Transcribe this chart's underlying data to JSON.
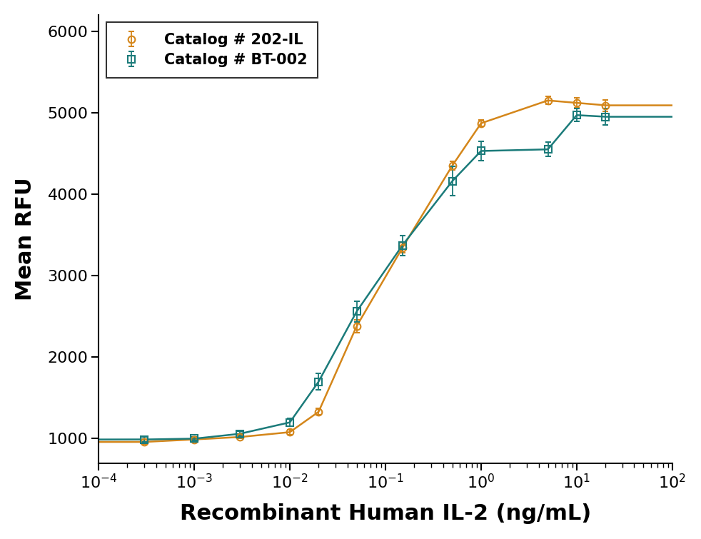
{
  "series": [
    {
      "label": "Catalog # 202-IL",
      "color": "#D4861A",
      "marker": "o",
      "marker_facecolor": "none",
      "markersize": 7,
      "x": [
        0.0003,
        0.001,
        0.003,
        0.01,
        0.02,
        0.05,
        0.15,
        0.5,
        1.0,
        5.0,
        10.0,
        20.0
      ],
      "y": [
        960,
        990,
        1020,
        1080,
        1330,
        2380,
        3340,
        4350,
        4870,
        5150,
        5120,
        5090
      ],
      "yerr": [
        30,
        20,
        20,
        30,
        40,
        80,
        60,
        50,
        40,
        50,
        60,
        70
      ],
      "fit_p0": [
        950,
        5200,
        0.04,
        1.5
      ],
      "fit_bounds_low": [
        500,
        4500,
        1e-05,
        0.1
      ],
      "fit_bounds_high": [
        1200,
        6000,
        10,
        8
      ]
    },
    {
      "label": "Catalog # BT-002",
      "color": "#1B7B7A",
      "marker": "s",
      "marker_facecolor": "none",
      "markersize": 7,
      "x": [
        0.0003,
        0.001,
        0.003,
        0.01,
        0.02,
        0.05,
        0.15,
        0.5,
        1.0,
        5.0,
        10.0,
        20.0
      ],
      "y": [
        990,
        1000,
        1060,
        1200,
        1700,
        2560,
        3370,
        4160,
        4530,
        4550,
        4970,
        4950
      ],
      "yerr": [
        30,
        25,
        30,
        50,
        100,
        130,
        120,
        180,
        120,
        90,
        80,
        100
      ],
      "fit_p0": [
        980,
        5000,
        0.015,
        1.5
      ],
      "fit_bounds_low": [
        500,
        4000,
        1e-05,
        0.1
      ],
      "fit_bounds_high": [
        1200,
        6000,
        10,
        8
      ]
    }
  ],
  "xlabel": "Recombinant Human IL-2 (ng/mL)",
  "ylabel": "Mean RFU",
  "xlim": [
    0.0001,
    100.0
  ],
  "ylim": [
    700,
    6200
  ],
  "yticks": [
    1000,
    2000,
    3000,
    4000,
    5000,
    6000
  ],
  "legend_loc": "upper left",
  "background_color": "#ffffff",
  "curve_points": 400
}
